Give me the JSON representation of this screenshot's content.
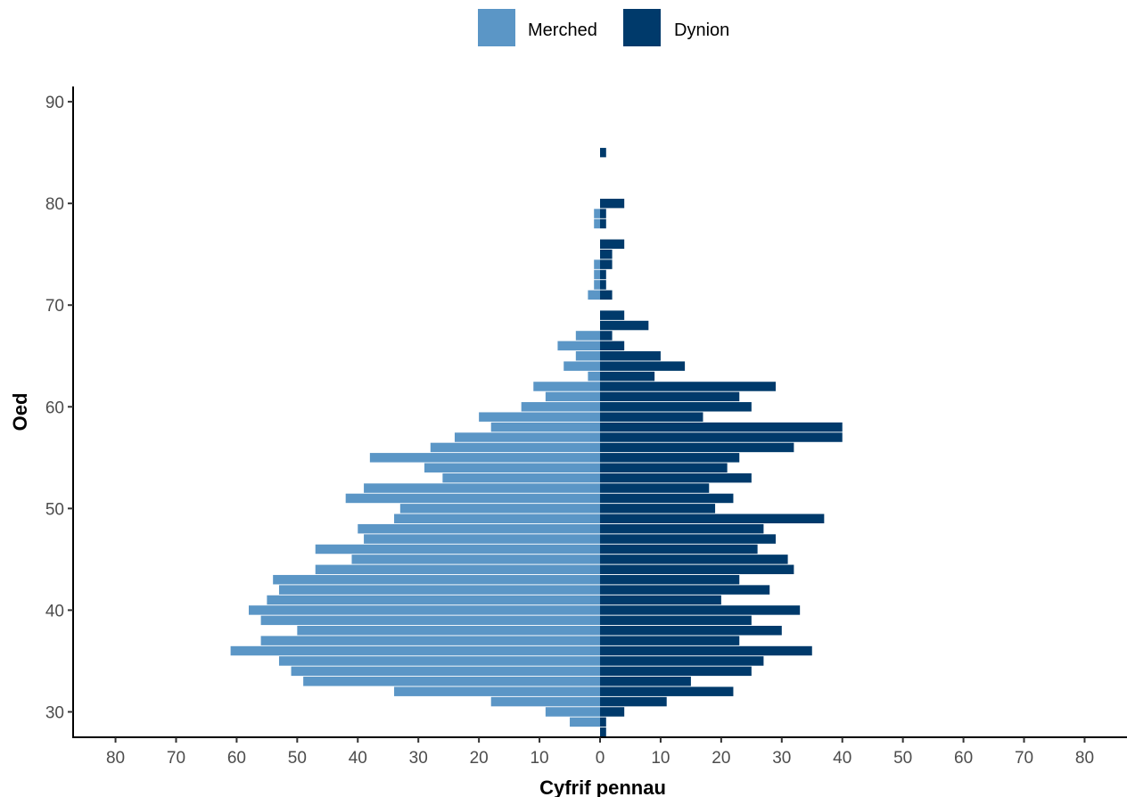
{
  "chart_data": {
    "type": "bar",
    "orientation": "horizontal",
    "subtype": "population-pyramid",
    "xlabel": "Cyfrif pennau",
    "ylabel": "Oed",
    "xlim": [
      -87,
      87
    ],
    "ylim": [
      27.5,
      91.5
    ],
    "x_ticks": [
      -80,
      -70,
      -60,
      -50,
      -40,
      -30,
      -20,
      -10,
      0,
      10,
      20,
      30,
      40,
      50,
      60,
      70,
      80
    ],
    "x_tick_labels": [
      "80",
      "70",
      "60",
      "50",
      "40",
      "30",
      "20",
      "10",
      "0",
      "10",
      "20",
      "30",
      "40",
      "50",
      "60",
      "70",
      "80"
    ],
    "y_ticks": [
      30,
      40,
      50,
      60,
      70,
      80,
      90
    ],
    "y_tick_labels": [
      "30",
      "40",
      "50",
      "60",
      "70",
      "80",
      "90"
    ],
    "grid": false,
    "legend_position": "top",
    "ages": [
      28,
      29,
      30,
      31,
      32,
      33,
      34,
      35,
      36,
      37,
      38,
      39,
      40,
      41,
      42,
      43,
      44,
      45,
      46,
      47,
      48,
      49,
      50,
      51,
      52,
      53,
      54,
      55,
      56,
      57,
      58,
      59,
      60,
      61,
      62,
      63,
      64,
      65,
      66,
      67,
      68,
      69,
      70,
      71,
      72,
      73,
      74,
      75,
      76,
      77,
      78,
      79,
      80,
      81,
      82,
      83,
      84,
      85
    ],
    "series": [
      {
        "name": "Merched",
        "color": "#5b96c6",
        "side": "left",
        "values": [
          0,
          5,
          9,
          18,
          34,
          49,
          51,
          53,
          61,
          56,
          50,
          56,
          58,
          55,
          53,
          54,
          47,
          41,
          47,
          39,
          40,
          34,
          33,
          42,
          39,
          26,
          29,
          38,
          28,
          24,
          18,
          20,
          13,
          9,
          11,
          2,
          6,
          4,
          7,
          4,
          0,
          0,
          0,
          2,
          1,
          1,
          1,
          0,
          0,
          0,
          1,
          1,
          0,
          0,
          0,
          0,
          0,
          0
        ]
      },
      {
        "name": "Dynion",
        "color": "#003a6b",
        "side": "right",
        "values": [
          1,
          1,
          4,
          11,
          22,
          15,
          25,
          27,
          35,
          23,
          30,
          25,
          33,
          20,
          28,
          23,
          32,
          31,
          26,
          29,
          27,
          37,
          19,
          22,
          18,
          25,
          21,
          23,
          32,
          40,
          40,
          17,
          25,
          23,
          29,
          9,
          14,
          10,
          4,
          2,
          8,
          4,
          0,
          2,
          1,
          1,
          2,
          2,
          4,
          0,
          1,
          1,
          4,
          0,
          0,
          0,
          0,
          1
        ]
      }
    ]
  }
}
